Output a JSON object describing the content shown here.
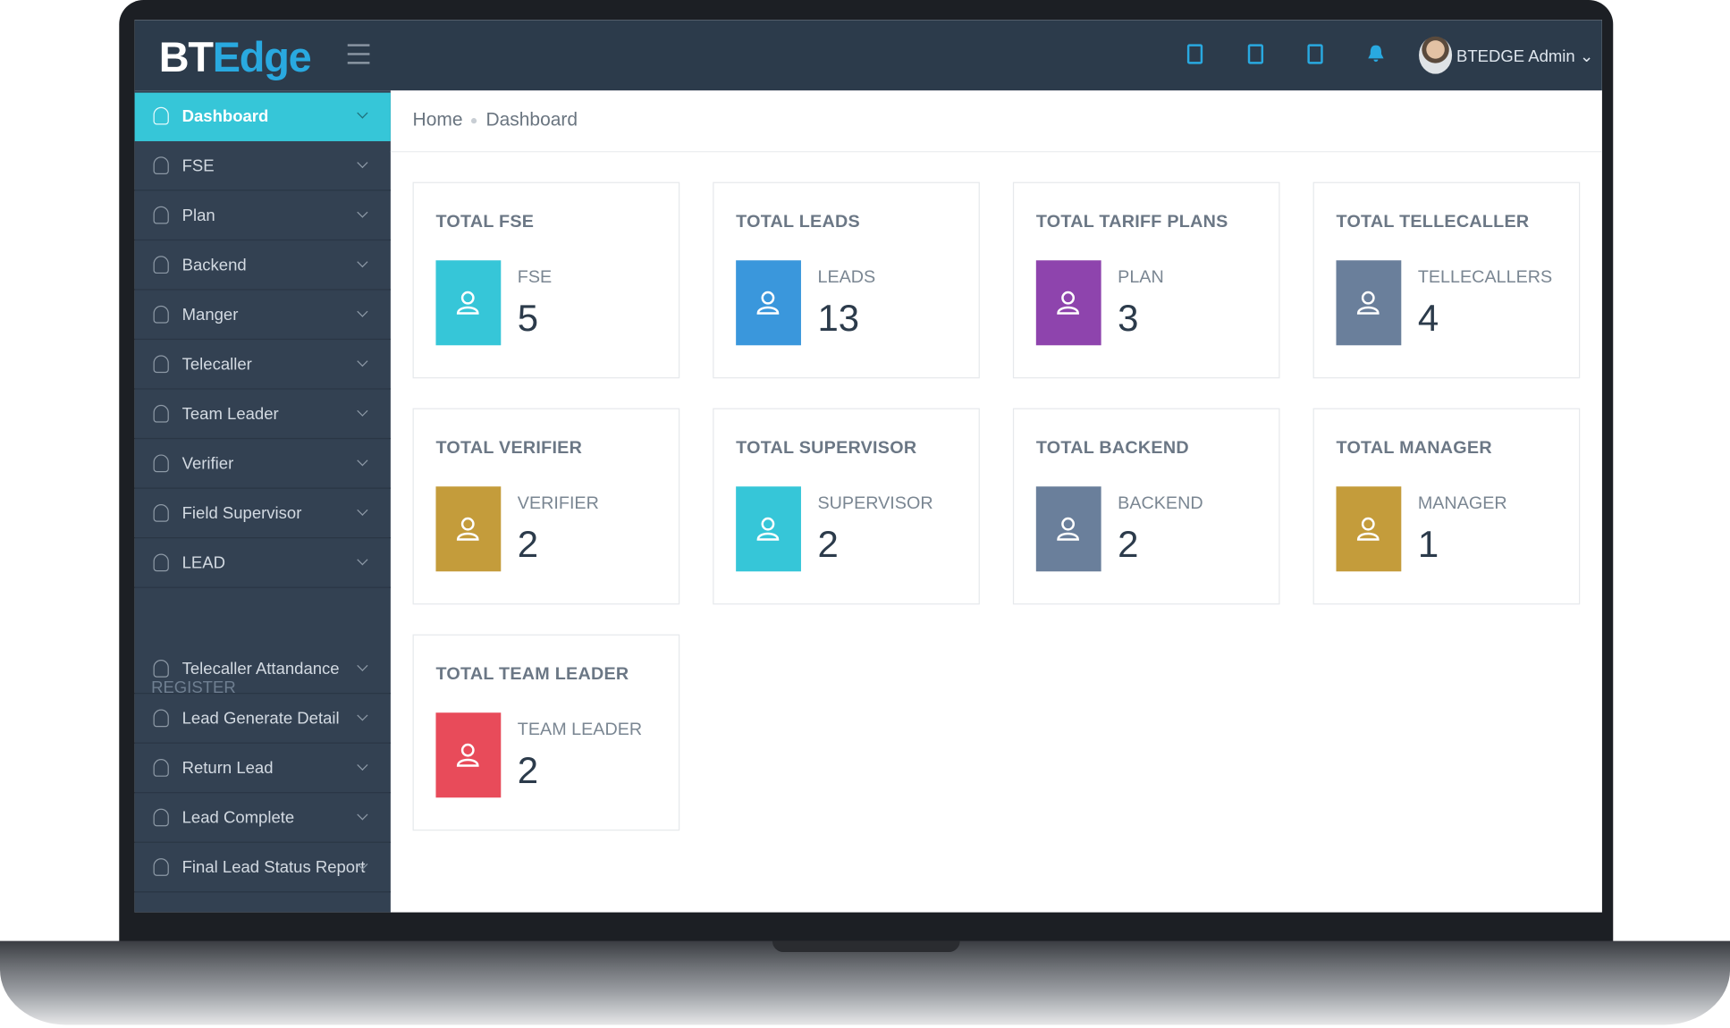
{
  "header": {
    "logo_prefix": "BT",
    "logo_suffix": "Edge",
    "user": "BTEDGE Admin"
  },
  "sidebar": {
    "items": [
      "Dashboard",
      "FSE",
      "Plan",
      "Backend",
      "Manger",
      "Telecaller",
      "Team Leader",
      "Verifier",
      "Field Supervisor",
      "LEAD"
    ],
    "section": "REGISTER",
    "register_items": [
      "Telecaller Attandance",
      "Lead Generate Detail",
      "Return Lead",
      "Lead Complete",
      "Final Lead Status Report"
    ]
  },
  "breadcrumb": [
    "Home",
    "Dashboard"
  ],
  "cards": [
    {
      "title": "TOTAL FSE",
      "label": "FSE",
      "value": 5,
      "color": "#36c6d8"
    },
    {
      "title": "TOTAL LEADS",
      "label": "LEADS",
      "value": 13,
      "color": "#3a97dc"
    },
    {
      "title": "TOTAL TARIFF PLANS",
      "label": "PLAN",
      "value": 3,
      "color": "#8e44ad"
    },
    {
      "title": "TOTAL TELLECALLER",
      "label": "TELLECALLERS",
      "value": 4,
      "color": "#6a7f9b"
    },
    {
      "title": "TOTAL VERIFIER",
      "label": "VERIFIER",
      "value": 2,
      "color": "#c49c3b"
    },
    {
      "title": "TOTAL SUPERVISOR",
      "label": "SUPERVISOR",
      "value": 2,
      "color": "#36c6d8"
    },
    {
      "title": "TOTAL BACKEND",
      "label": "BACKEND",
      "value": 2,
      "color": "#6a7f9b"
    },
    {
      "title": "TOTAL MANAGER",
      "label": "MANAGER",
      "value": 1,
      "color": "#c49c3b"
    },
    {
      "title": "TOTAL TEAM LEADER",
      "label": "TEAM LEADER",
      "value": 2,
      "color": "#e84b5a"
    }
  ]
}
